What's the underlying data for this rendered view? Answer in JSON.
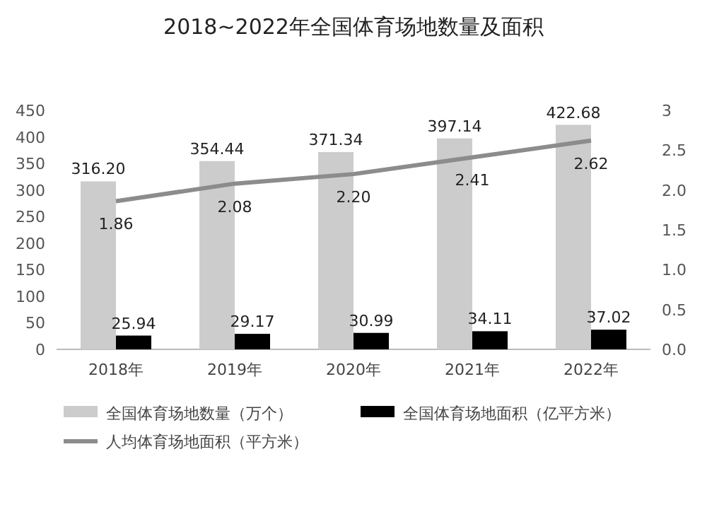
{
  "chart_data": {
    "type": "bar",
    "title": "2018~2022年全国体育场地数量及面积",
    "categories": [
      "2018年",
      "2019年",
      "2020年",
      "2021年",
      "2022年"
    ],
    "series": [
      {
        "name": "全国体育场地数量（万个）",
        "color": "#cccccc",
        "values": [
          316.2,
          354.44,
          371.34,
          397.14,
          422.68
        ],
        "value_labels": [
          "316.20",
          "354.44",
          "371.34",
          "397.14",
          "422.68"
        ]
      },
      {
        "name": "全国体育场地面积（亿平方米）",
        "color": "#000000",
        "values": [
          25.94,
          29.17,
          30.99,
          34.11,
          37.02
        ],
        "value_labels": [
          "25.94",
          "29.17",
          "30.99",
          "34.11",
          "37.02"
        ]
      },
      {
        "name": "人均体育场地面积（平方米）",
        "type": "line",
        "axis": "y2",
        "color": "#8c8c8c",
        "values": [
          1.86,
          2.08,
          2.2,
          2.41,
          2.62
        ],
        "value_labels": [
          "1.86",
          "2.08",
          "2.20",
          "2.41",
          "2.62"
        ]
      }
    ],
    "ylim": [
      0,
      450
    ],
    "yticks": [
      0,
      50,
      100,
      150,
      200,
      250,
      300,
      350,
      400,
      450
    ],
    "y2lim": [
      0,
      3
    ],
    "y2ticks": [
      {
        "value": 0,
        "label": "0.0"
      },
      {
        "value": 0.5,
        "label": "0.5"
      },
      {
        "value": 1,
        "label": "1.0"
      },
      {
        "value": 1.5,
        "label": "1.5"
      },
      {
        "value": 2,
        "label": "2.0"
      },
      {
        "value": 2.5,
        "label": "2.5"
      },
      {
        "value": 3,
        "label": "3"
      }
    ],
    "legend": "bottom"
  }
}
